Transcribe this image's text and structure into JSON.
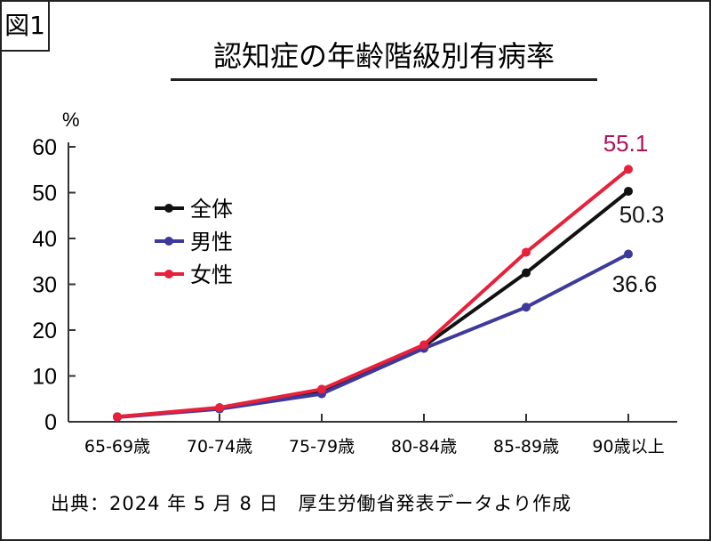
{
  "figure_label": "図1",
  "source": "出典：2024 年 5 月 8 日　厚生労働省発表データより作成",
  "chart_data": {
    "type": "line",
    "title": "認知症の年齢階級別有病率",
    "ylabel": "%",
    "xlabel": "",
    "ylim": [
      0,
      60
    ],
    "yticks": [
      0,
      10,
      20,
      30,
      40,
      50,
      60
    ],
    "categories": [
      "65-69歳",
      "70-74歳",
      "75-79歳",
      "80-84歳",
      "85-89歳",
      "90歳以上"
    ],
    "legend_position": "upper-left",
    "series": [
      {
        "name": "全体",
        "color": "#111111",
        "values": [
          1.1,
          2.9,
          6.8,
          16.5,
          32.5,
          50.3
        ],
        "end_label": "50.3",
        "label_color": "#111111"
      },
      {
        "name": "男性",
        "color": "#3d3a9c",
        "values": [
          1.0,
          2.8,
          6.1,
          16.0,
          25.0,
          36.6
        ],
        "end_label": "36.6",
        "label_color": "#111111"
      },
      {
        "name": "女性",
        "color": "#e8203a",
        "values": [
          1.1,
          3.1,
          7.1,
          16.8,
          37.0,
          55.1
        ],
        "end_label": "55.1",
        "label_color": "#b0125a"
      }
    ]
  }
}
